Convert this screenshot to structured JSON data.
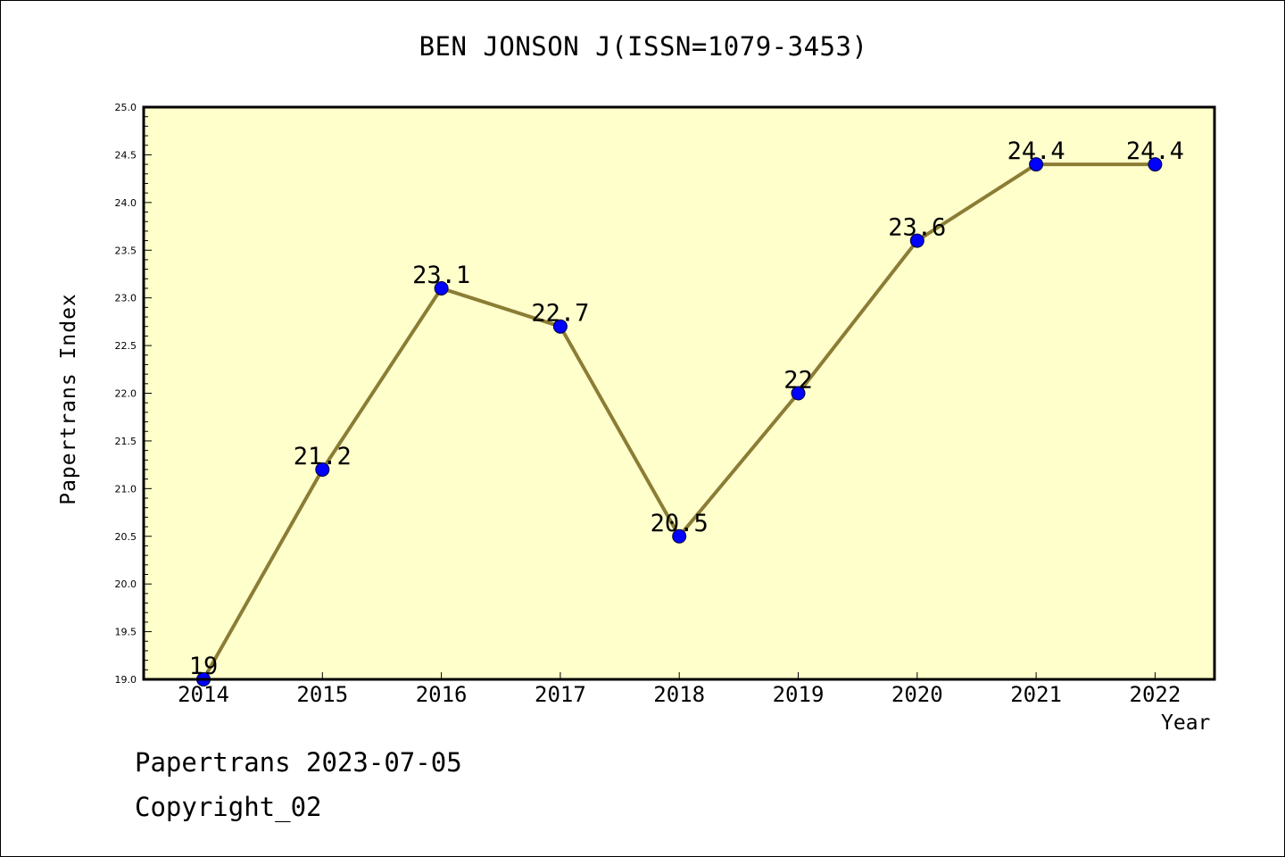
{
  "chart_data": {
    "type": "line",
    "title": "BEN JONSON J(ISSN=1079-3453)",
    "xlabel": "Year",
    "ylabel": "Papertrans Index",
    "categories": [
      "2014",
      "2015",
      "2016",
      "2017",
      "2018",
      "2019",
      "2020",
      "2021",
      "2022"
    ],
    "values": [
      19,
      21.2,
      23.1,
      22.7,
      20.5,
      22,
      23.6,
      24.4,
      24.4
    ],
    "data_labels": [
      "19",
      "21.2",
      "23.1",
      "22.7",
      "20.5",
      "22",
      "23.6",
      "24.4",
      "24.4"
    ],
    "ylim": [
      19.0,
      25.0
    ],
    "yticks": [
      "19.0",
      "19.5",
      "20.0",
      "20.5",
      "21.0",
      "21.5",
      "22.0",
      "22.5",
      "23.0",
      "23.5",
      "24.0",
      "24.5",
      "25.0"
    ],
    "grid": false,
    "legend": "none",
    "colors": {
      "plot_background": "#FFFFCC",
      "line": "#8B7D35",
      "marker": "#0000FF"
    }
  },
  "footer": {
    "date_line": "Papertrans 2023-07-05",
    "copyright": "Copyright_02"
  }
}
